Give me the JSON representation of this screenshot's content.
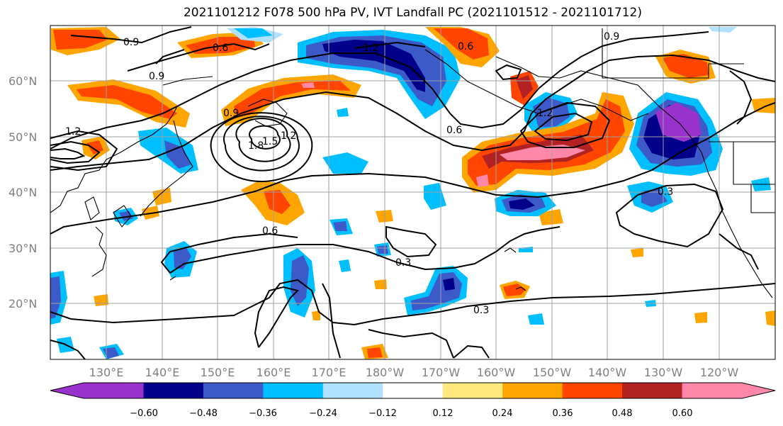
{
  "title": "2021101212 F078 500 hPa PV, IVT Landfall PC (2021101512 - 2021101712)",
  "lat_labels": [
    "60°N",
    "50°N",
    "40°N",
    "30°N",
    "20°N"
  ],
  "lon_labels": [
    "130°E",
    "140°E",
    "150°E",
    "160°E",
    "170°E",
    "180°W",
    "170°W",
    "160°W",
    "150°W",
    "140°W",
    "130°W",
    "120°W"
  ],
  "colorbar": {
    "ticks": [
      "−0.60",
      "−0.48",
      "−0.36",
      "−0.24",
      "−0.12",
      "0.12",
      "0.24",
      "0.36",
      "0.48",
      "0.60"
    ],
    "colors": [
      "#9932cc",
      "#00008b",
      "#3c5ac8",
      "#00bfff",
      "#b0e2ff",
      "#ffffff",
      "#ffe97f",
      "#ffa500",
      "#ff4500",
      "#b22222",
      "#ff88aa"
    ]
  },
  "contour_labels": [
    "0.9",
    "0.6",
    "1.2",
    "0.9",
    "0.9",
    "0.6",
    "0.6",
    "1.2",
    "0.9",
    "1.8",
    "1.5",
    "1.2",
    "0.6",
    "0.3",
    "0.3",
    "0.3",
    "1.2"
  ]
}
